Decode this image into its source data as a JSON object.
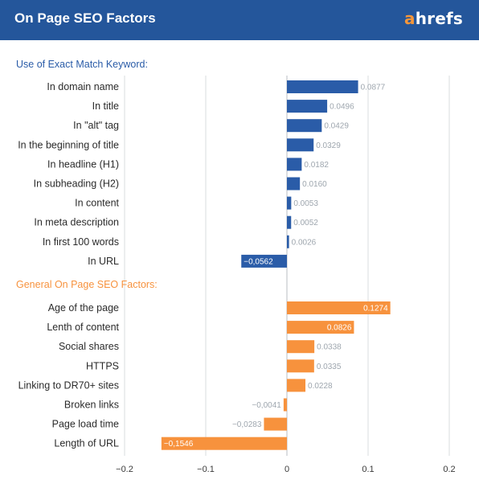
{
  "header": {
    "title": "On Page SEO Factors",
    "logo_first": "a",
    "logo_rest": "hrefs"
  },
  "colors": {
    "header_bg": "#24569b",
    "blue": "#2a5ca8",
    "orange": "#f7923d",
    "value_gray": "#9ea6ae",
    "grid": "#d8dcdf"
  },
  "chart_data": {
    "type": "bar",
    "orientation": "horizontal",
    "title": "On Page SEO Factors",
    "xlim": [
      -0.2,
      0.2
    ],
    "xticks": [
      "−0.2",
      "−0.1",
      "0",
      "0.1",
      "0.2"
    ],
    "xtick_values": [
      -0.2,
      -0.1,
      0,
      0.1,
      0.2
    ],
    "grid": true,
    "groups": [
      {
        "name": "Use of Exact Match Keyword:",
        "color": "#2a5ca8",
        "categories": [
          "In domain name",
          "In title",
          "In \"alt\" tag",
          "In the beginning of title",
          "In headline (H1)",
          "In subheading (H2)",
          "In content",
          "In meta description",
          "In first 100 words",
          "In URL"
        ],
        "values": [
          0.0877,
          0.0496,
          0.0429,
          0.0329,
          0.0182,
          0.016,
          0.0053,
          0.0052,
          0.0026,
          -0.0562
        ],
        "labels": [
          "0.0877",
          "0.0496",
          "0.0429",
          "0.0329",
          "0.0182",
          "0.0160",
          "0.0053",
          "0.0052",
          "0.0026",
          "−0,0562"
        ]
      },
      {
        "name": "General On Page SEO Factors:",
        "color": "#f7923d",
        "categories": [
          "Age of the page",
          "Lenth of content",
          "Social shares",
          "HTTPS",
          "Linking to DR70+ sites",
          "Broken links",
          "Page load time",
          "Length of URL"
        ],
        "values": [
          0.1274,
          0.0826,
          0.0338,
          0.0335,
          0.0228,
          -0.0041,
          -0.0283,
          -0.1546
        ],
        "labels": [
          "0.1274",
          "0.0826",
          "0.0338",
          "0.0335",
          "0.0228",
          "−0,0041",
          "−0,0283",
          "−0,1546"
        ]
      }
    ]
  }
}
